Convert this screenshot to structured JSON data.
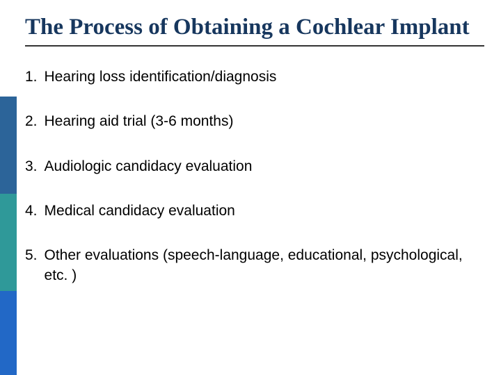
{
  "title": "The Process of Obtaining a Cochlear Implant",
  "items": [
    {
      "num": "1.",
      "text": "Hearing loss identification/diagnosis"
    },
    {
      "num": "2.",
      "text": "Hearing aid trial (3-6 months)"
    },
    {
      "num": "3.",
      "text": "Audiologic candidacy evaluation"
    },
    {
      "num": "4.",
      "text": "Medical candidacy evaluation"
    },
    {
      "num": "5.",
      "text": "Other evaluations (speech-language, educational, psychological, etc. )"
    }
  ],
  "colors": {
    "title": "#17375e",
    "sidebar_blue": "#2c6499",
    "sidebar_teal": "#2f9999",
    "sidebar_blue2": "#2268c6",
    "background": "#ffffff",
    "body_text": "#000000",
    "rule": "#333333"
  },
  "typography": {
    "title_font": "Times New Roman",
    "body_font": "Verdana",
    "title_fontsize_pt": 25,
    "body_fontsize_pt": 16
  }
}
